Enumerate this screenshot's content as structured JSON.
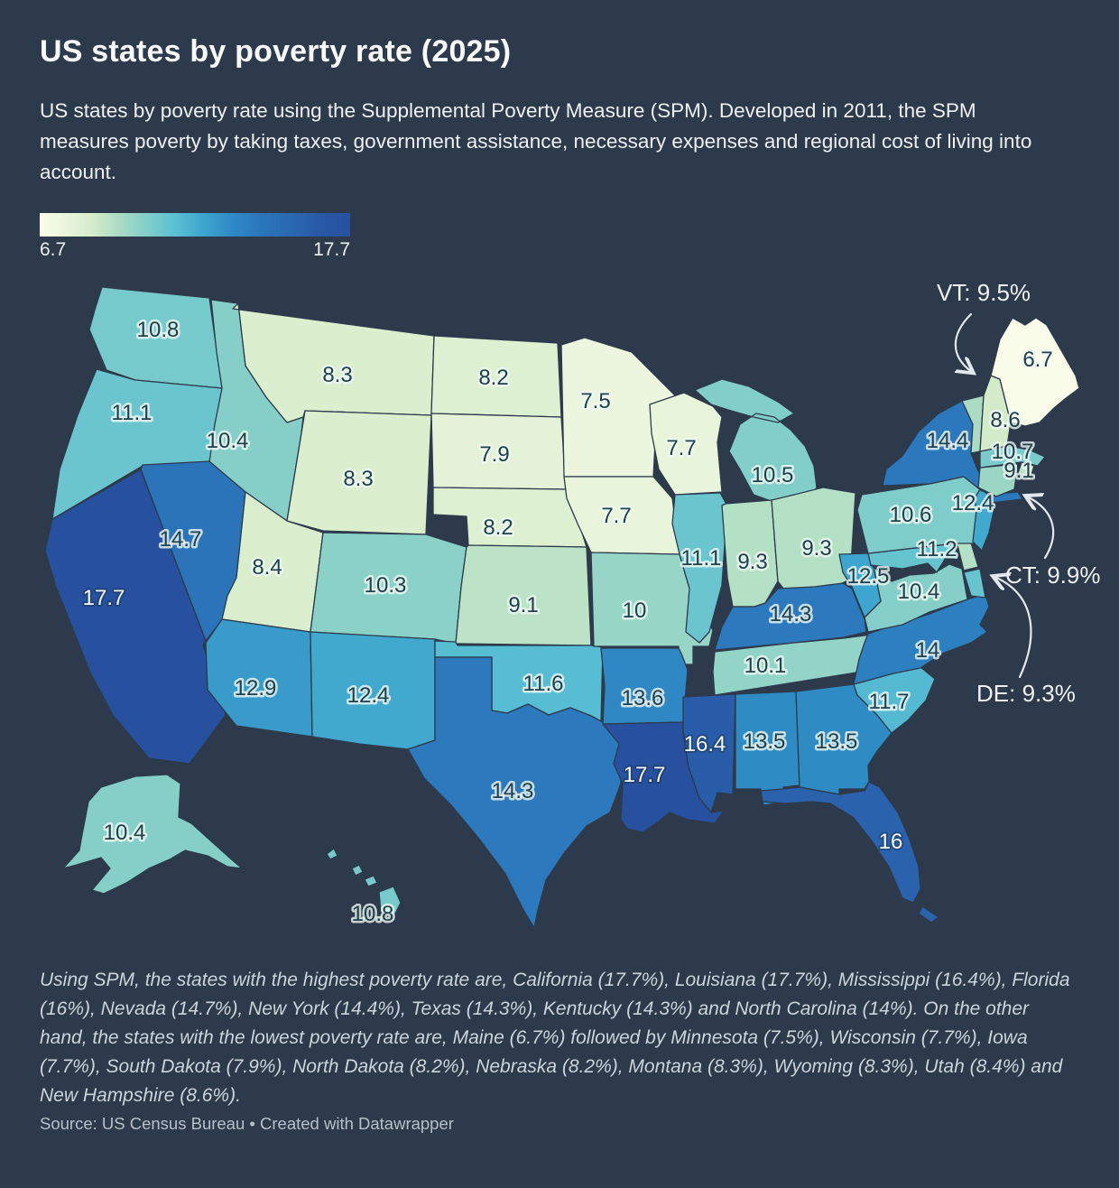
{
  "header": {
    "title": "US states by poverty rate (2025)",
    "description": "US states by poverty rate using the Supplemental Poverty Measure (SPM). Developed in 2011, the SPM measures poverty by taking taxes, government assistance, necessary expenses and regional cost of living into account."
  },
  "legend": {
    "min_label": "6.7",
    "max_label": "17.7"
  },
  "annotations": [
    {
      "state": "VT",
      "text": "VT: 9.5%"
    },
    {
      "state": "CT",
      "text": "CT: 9.9%"
    },
    {
      "state": "DE",
      "text": "DE: 9.3%"
    }
  ],
  "footer": {
    "note": "Using SPM, the states with the highest poverty rate are, California (17.7%), Louisiana (17.7%), Mississippi (16.4%), Florida (16%), Nevada (14.7%), New York (14.4%), Texas (14.3%), Kentucky (14.3%) and North Carolina (14%). On the other hand, the states with the lowest poverty rate are, Maine (6.7%) followed by Minnesota (7.5%), Wisconsin (7.7%), Iowa (7.7%), South Dakota (7.9%), North Dakota (8.2%), Nebraska (8.2%), Montana (8.3%), Wyoming (8.3%), Utah (8.4%) and New Hampshire (8.6%).",
    "source": "Source: US Census Bureau • Created with Datawrapper"
  },
  "chart_data": {
    "type": "choropleth-map",
    "title": "US states by poverty rate (2025)",
    "unit": "%",
    "domain": [
      6.7,
      17.7
    ],
    "legend_gradient_stops": [
      {
        "pos": 0.0,
        "color": "#f9fce9"
      },
      {
        "pos": 0.09,
        "color": "#e9f5db"
      },
      {
        "pos": 0.17,
        "color": "#d5ecca"
      },
      {
        "pos": 0.255,
        "color": "#abdcc3"
      },
      {
        "pos": 0.345,
        "color": "#82cec9"
      },
      {
        "pos": 0.435,
        "color": "#5ac0d2"
      },
      {
        "pos": 0.53,
        "color": "#3da5ce"
      },
      {
        "pos": 0.62,
        "color": "#2f8ac4"
      },
      {
        "pos": 0.71,
        "color": "#2b76bb"
      },
      {
        "pos": 0.81,
        "color": "#2a68b1"
      },
      {
        "pos": 0.9,
        "color": "#2959a7"
      },
      {
        "pos": 1.0,
        "color": "#27519e"
      }
    ],
    "light_label_threshold": 15.5,
    "states": [
      {
        "abbr": "WA",
        "value": 10.8
      },
      {
        "abbr": "OR",
        "value": 11.1
      },
      {
        "abbr": "CA",
        "value": 17.7
      },
      {
        "abbr": "ID",
        "value": 10.4
      },
      {
        "abbr": "NV",
        "value": 14.7
      },
      {
        "abbr": "UT",
        "value": 8.4
      },
      {
        "abbr": "AZ",
        "value": 12.9
      },
      {
        "abbr": "MT",
        "value": 8.3
      },
      {
        "abbr": "WY",
        "value": 8.3
      },
      {
        "abbr": "CO",
        "value": 10.3
      },
      {
        "abbr": "NM",
        "value": 12.4
      },
      {
        "abbr": "ND",
        "value": 8.2
      },
      {
        "abbr": "SD",
        "value": 7.9
      },
      {
        "abbr": "NE",
        "value": 8.2
      },
      {
        "abbr": "KS",
        "value": 9.1
      },
      {
        "abbr": "OK",
        "value": 11.6
      },
      {
        "abbr": "TX",
        "value": 14.3
      },
      {
        "abbr": "MN",
        "value": 7.5
      },
      {
        "abbr": "IA",
        "value": 7.7
      },
      {
        "abbr": "MO",
        "value": 10
      },
      {
        "abbr": "AR",
        "value": 13.6
      },
      {
        "abbr": "LA",
        "value": 17.7
      },
      {
        "abbr": "WI",
        "value": 7.7
      },
      {
        "abbr": "IL",
        "value": 11.1
      },
      {
        "abbr": "MI",
        "value": 10.5
      },
      {
        "abbr": "IN",
        "value": 9.3
      },
      {
        "abbr": "OH",
        "value": 9.3
      },
      {
        "abbr": "KY",
        "value": 14.3
      },
      {
        "abbr": "TN",
        "value": 10.1
      },
      {
        "abbr": "MS",
        "value": 16.4
      },
      {
        "abbr": "AL",
        "value": 13.5
      },
      {
        "abbr": "GA",
        "value": 13.5
      },
      {
        "abbr": "FL",
        "value": 16
      },
      {
        "abbr": "SC",
        "value": 11.7
      },
      {
        "abbr": "NC",
        "value": 14
      },
      {
        "abbr": "VA",
        "value": 10.4
      },
      {
        "abbr": "WV",
        "value": 12.5
      },
      {
        "abbr": "MD",
        "value": 11.2
      },
      {
        "abbr": "DE",
        "value": 9.3,
        "show_label": false
      },
      {
        "abbr": "PA",
        "value": 10.6
      },
      {
        "abbr": "NJ",
        "value": 12.4
      },
      {
        "abbr": "NY",
        "value": 14.4
      },
      {
        "abbr": "CT",
        "value": 9.9,
        "show_label": false
      },
      {
        "abbr": "RI",
        "value": 9.1
      },
      {
        "abbr": "MA",
        "value": 10.7
      },
      {
        "abbr": "VT",
        "value": 9.5,
        "show_label": false
      },
      {
        "abbr": "NH",
        "value": 8.6
      },
      {
        "abbr": "ME",
        "value": 6.7
      },
      {
        "abbr": "AK",
        "value": 10.4
      },
      {
        "abbr": "HI",
        "value": 10.8
      }
    ]
  }
}
